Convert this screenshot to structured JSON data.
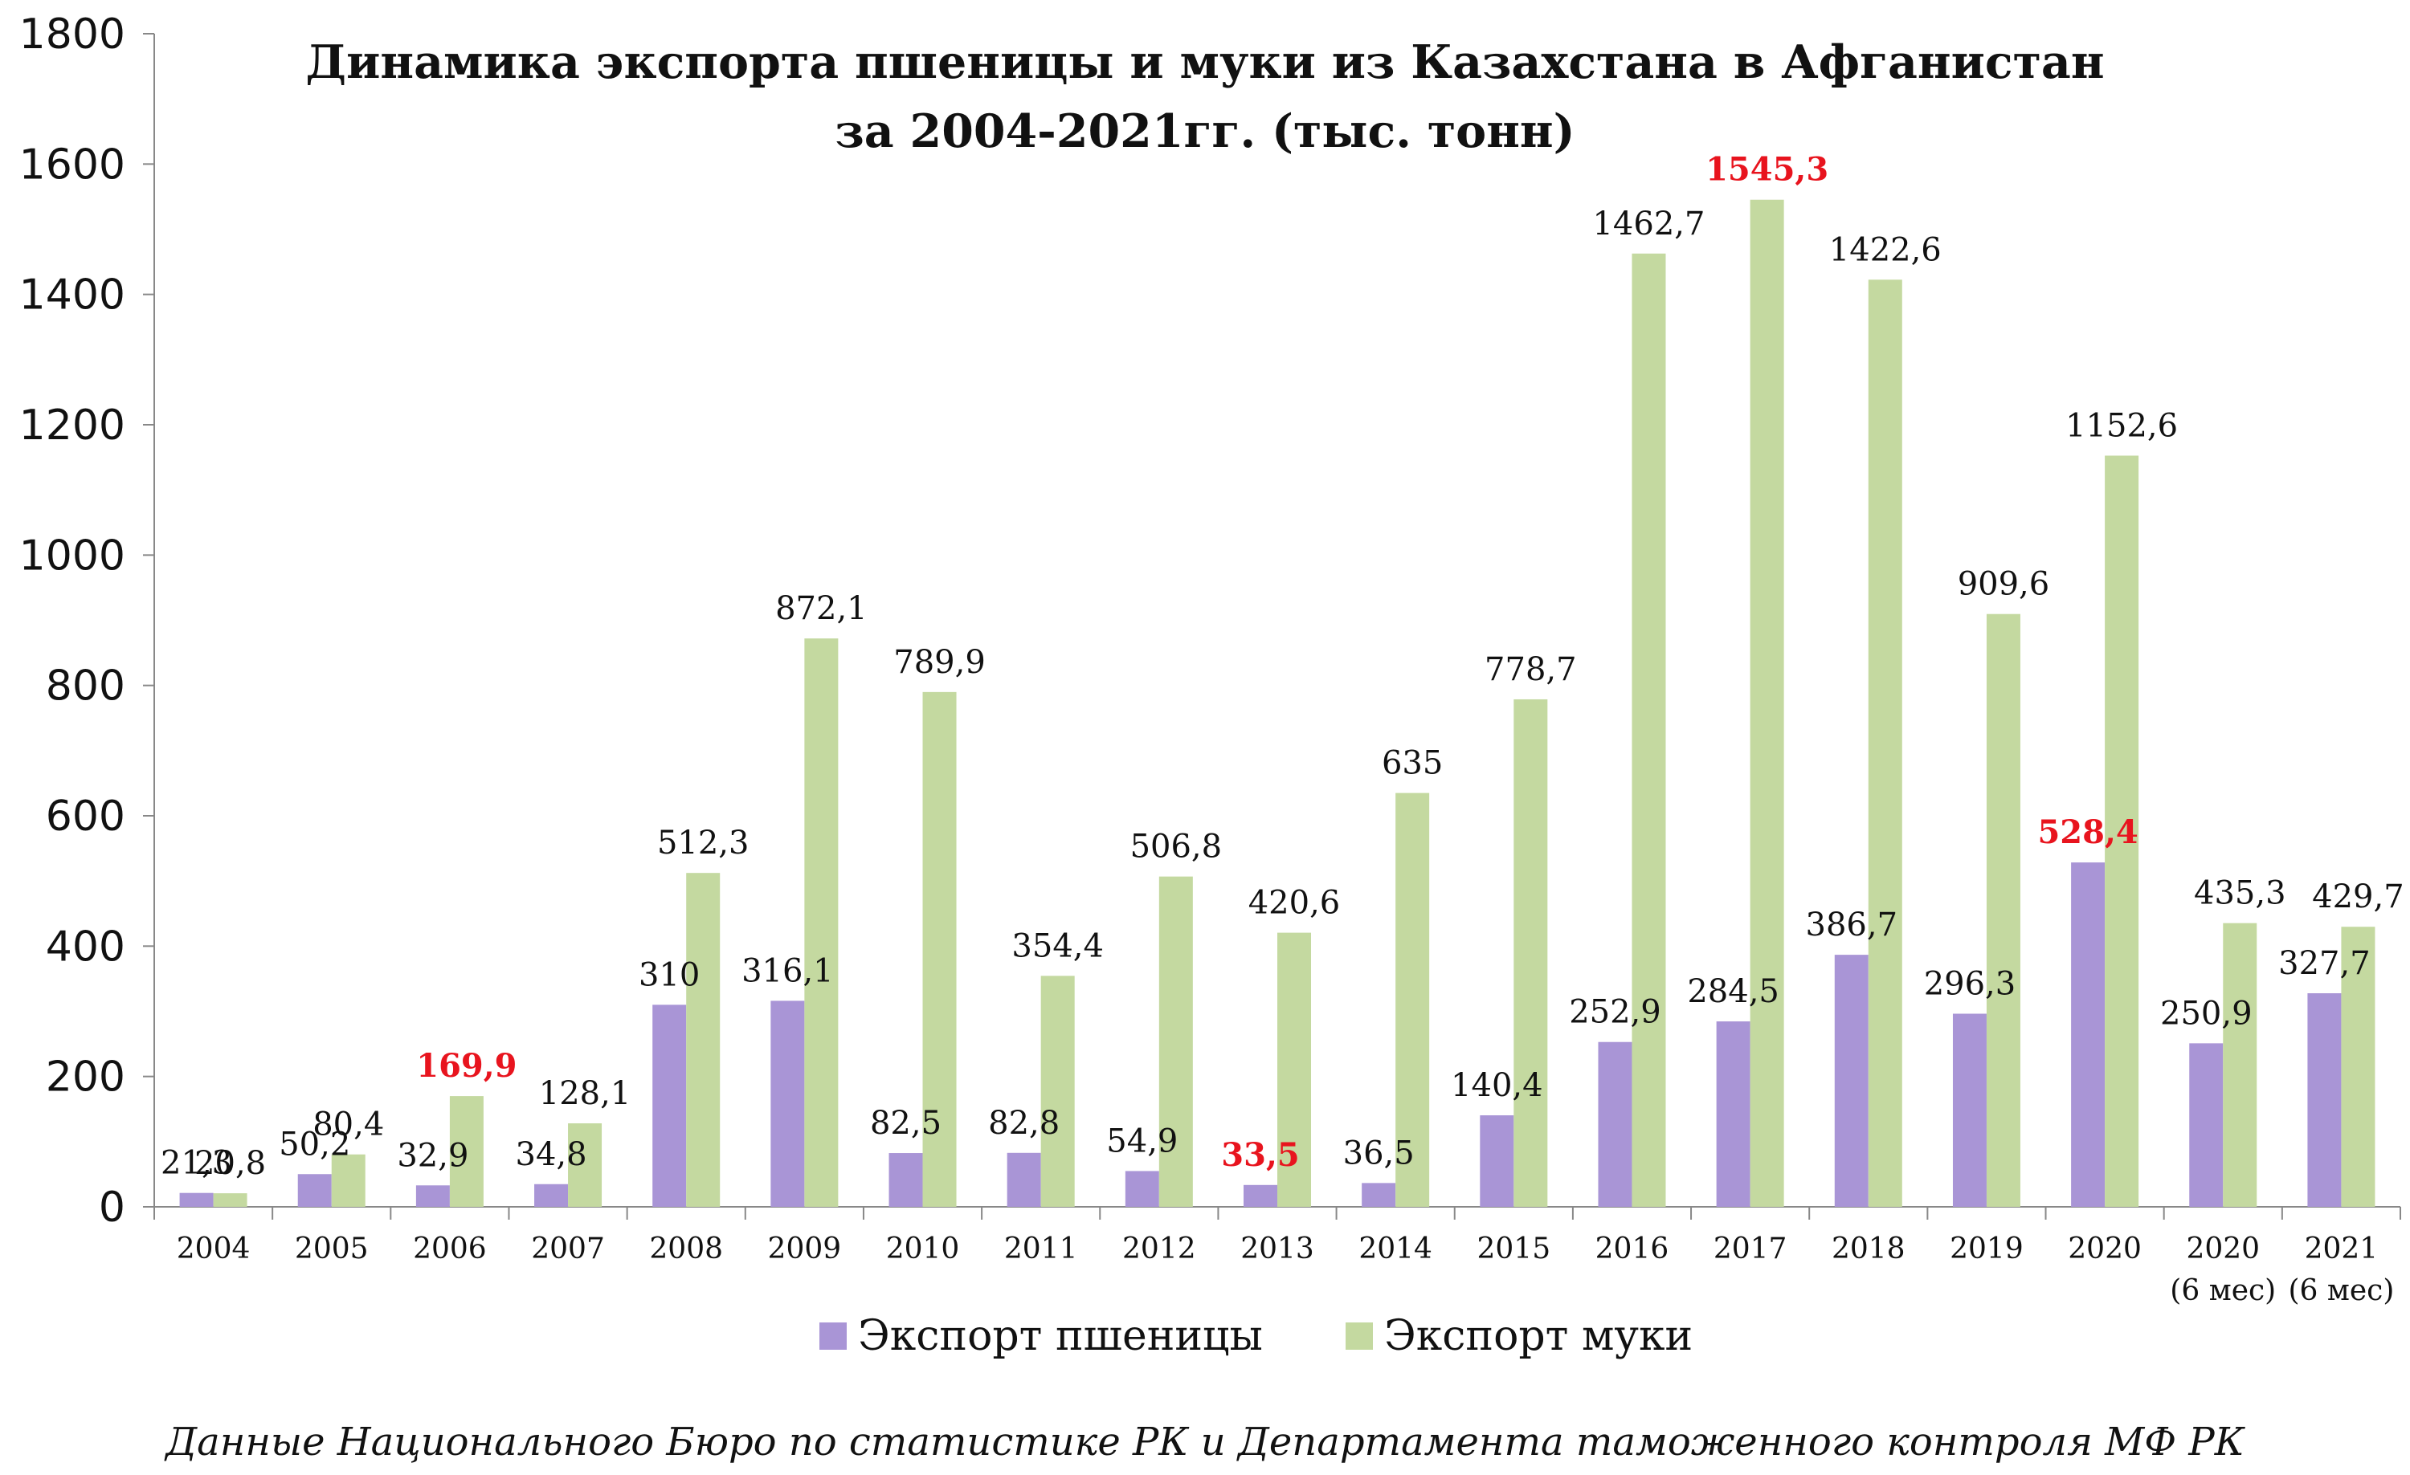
{
  "chart_data": {
    "type": "bar",
    "title_line1": "Динамика экспорта пшеницы и муки из Казахстана в Афганистан",
    "title_line2": "за 2004-2021гг. (тыс. тонн)",
    "xlabel": "",
    "ylabel": "",
    "ylim": [
      0,
      1800
    ],
    "yticks": [
      "0",
      "200",
      "400",
      "600",
      "800",
      "1000",
      "1200",
      "1400",
      "1600",
      "1800"
    ],
    "categories": [
      "2004",
      "2005",
      "2006",
      "2007",
      "2008",
      "2009",
      "2010",
      "2011",
      "2012",
      "2013",
      "2014",
      "2015",
      "2016",
      "2017",
      "2018",
      "2019",
      "2020",
      "2020",
      "2021"
    ],
    "category_sublabels": [
      "",
      "",
      "",
      "",
      "",
      "",
      "",
      "",
      "",
      "",
      "",
      "",
      "",
      "",
      "",
      "",
      "",
      "(6 мес)",
      "(6 мес)"
    ],
    "series": [
      {
        "name": "Экспорт пшеницы",
        "color": "#a995d6",
        "values": [
          21.3,
          50.2,
          32.9,
          34.8,
          310,
          316.1,
          82.5,
          82.8,
          54.9,
          33.5,
          36.5,
          140.4,
          252.9,
          284.5,
          386.7,
          296.3,
          528.4,
          250.9,
          327.7
        ],
        "labels": [
          "21,3",
          "50,2",
          "32,9",
          "34,8",
          "310",
          "316,1",
          "82,5",
          "82,8",
          "54,9",
          "33,5",
          "36,5",
          "140,4",
          "252,9",
          "284,5",
          "386,7",
          "296,3",
          "528,4",
          "250,9",
          "327,7"
        ],
        "highlighted": [
          9,
          16
        ]
      },
      {
        "name": "Экспорт муки",
        "color": "#c4d9a0",
        "values": [
          20.8,
          80.4,
          169.9,
          128.1,
          512.3,
          872.1,
          789.9,
          354.4,
          506.8,
          420.6,
          635,
          778.7,
          1462.7,
          1545.3,
          1422.6,
          909.6,
          1152.6,
          435.3,
          429.7
        ],
        "labels": [
          "20,8",
          "80,4",
          "169,9",
          "128,1",
          "512,3",
          "872,1",
          "789,9",
          "354,4",
          "506,8",
          "420,6",
          "635",
          "778,7",
          "1462,7",
          "1545,3",
          "1422,6",
          "909,6",
          "1152,6",
          "435,3",
          "429,7"
        ],
        "highlighted": [
          2,
          13
        ]
      }
    ],
    "highlight_color": "#e8141e",
    "grid": false,
    "legend_position": "bottom"
  },
  "source_note": "Данные Национального Бюро по статистике РК и Департамента таможенного контроля МФ РК"
}
